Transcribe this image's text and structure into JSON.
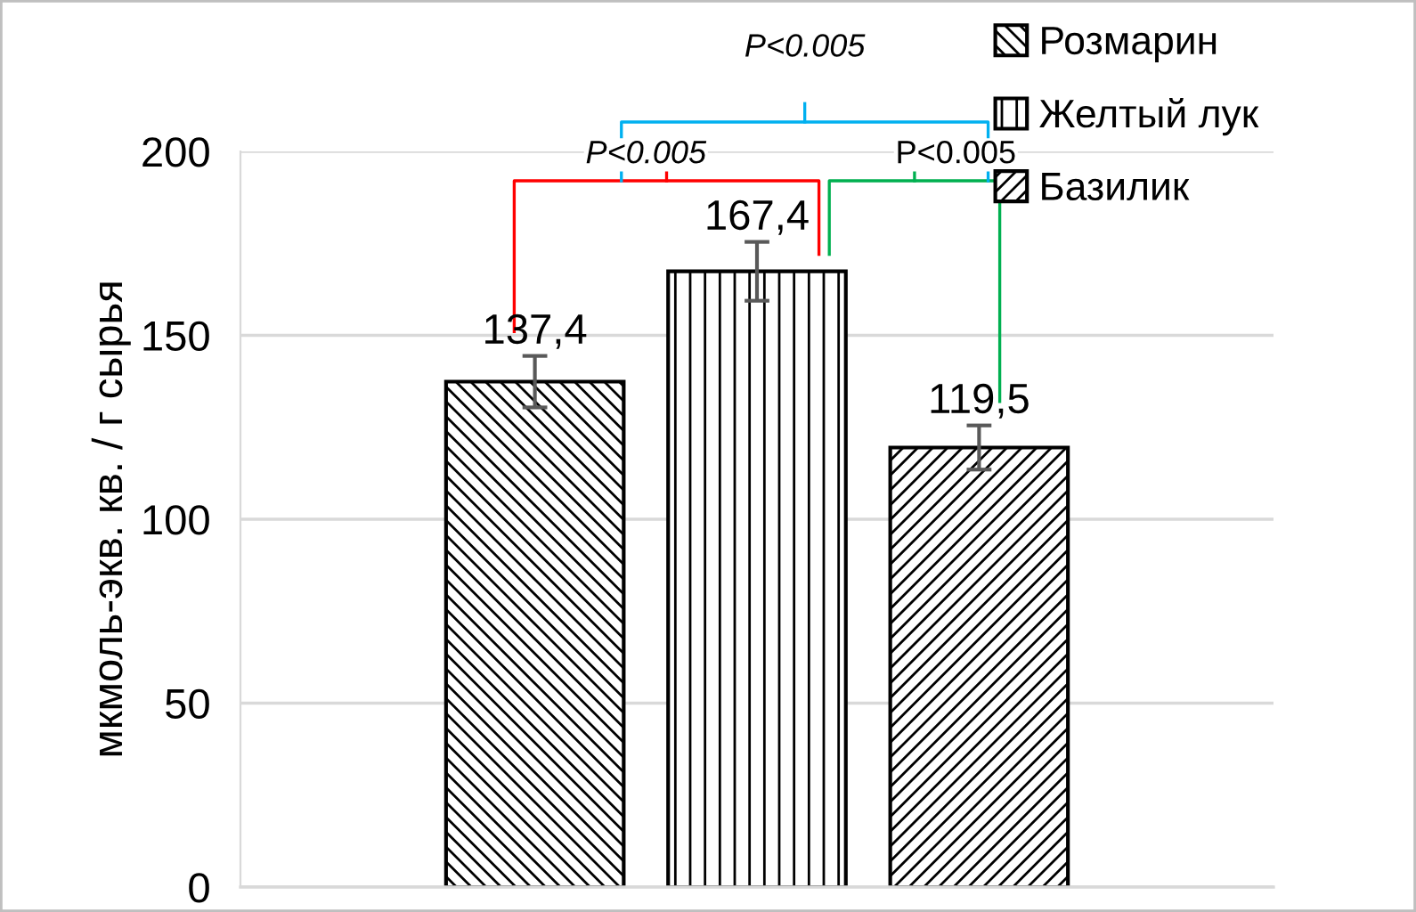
{
  "chart_data": {
    "type": "bar",
    "ylabel": "мкмоль-экв. кв. / г сырья",
    "categories": [
      null
    ],
    "series": [
      {
        "name": "Розмарин",
        "color": "#000000",
        "values": [
          137.4
        ],
        "errors": [
          7
        ],
        "value_labels": [
          "137,4"
        ]
      },
      {
        "name": "Желтый лук",
        "color": "#000000",
        "values": [
          167.4
        ],
        "errors": [
          8
        ],
        "value_labels": [
          "167,4"
        ]
      },
      {
        "name": "Базилик",
        "color": "#000000",
        "values": [
          119.5
        ],
        "errors": [
          6
        ],
        "value_labels": [
          "119,5"
        ]
      }
    ],
    "ylim": [
      0,
      200
    ],
    "yticks": [
      0,
      50,
      100,
      150,
      200
    ],
    "grid": "y",
    "legend": "top right",
    "annotations": [
      "P<0.005",
      "P<0.005",
      "P<0.005"
    ]
  }
}
